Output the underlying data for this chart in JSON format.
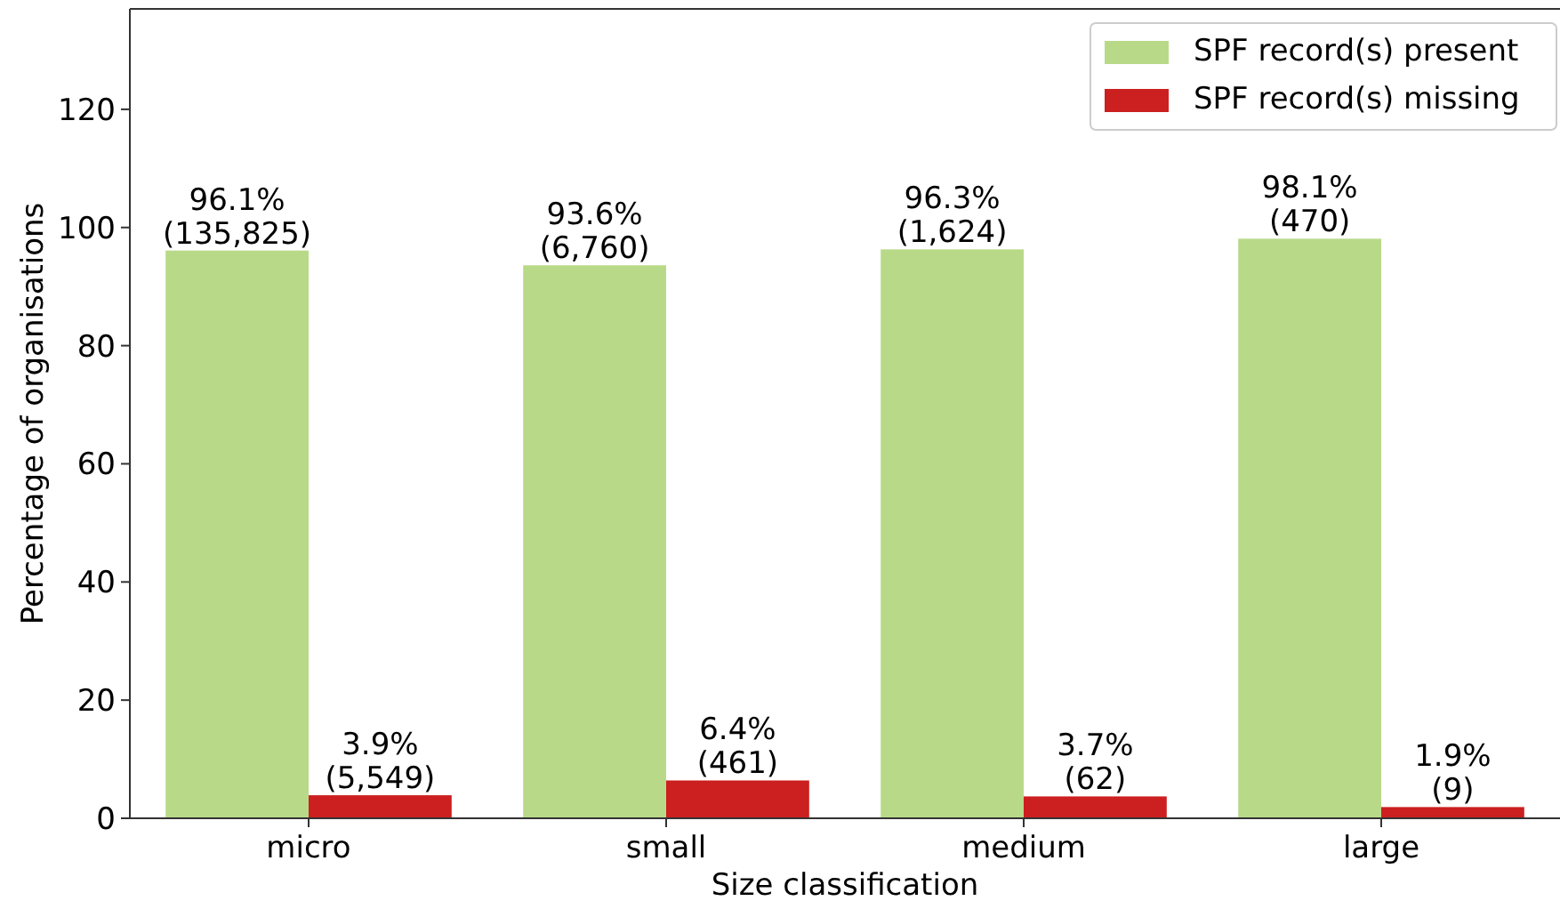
{
  "chart_data": {
    "type": "bar",
    "xlabel": "Size classification",
    "ylabel": "Percentage of organisations",
    "categories": [
      "micro",
      "small",
      "medium",
      "large"
    ],
    "series": [
      {
        "name": "SPF record(s) present",
        "color": "#b8da88",
        "values": [
          96.1,
          93.6,
          96.3,
          98.1
        ],
        "value_labels": [
          "96.1%\n(135,825)",
          "93.6%\n(6,760)",
          "96.3%\n(1,624)",
          "98.1%\n(470)"
        ]
      },
      {
        "name": "SPF record(s) missing",
        "color": "#cc1f1f",
        "values": [
          3.9,
          6.4,
          3.7,
          1.9
        ],
        "value_labels": [
          "3.9%\n(5,549)",
          "6.4%\n(461)",
          "3.7%\n(62)",
          "1.9%\n(9)"
        ]
      }
    ],
    "ylim": [
      0,
      137
    ],
    "yticks": [
      0,
      20,
      40,
      60,
      80,
      100,
      120
    ],
    "grid": false,
    "legend": "top right"
  }
}
